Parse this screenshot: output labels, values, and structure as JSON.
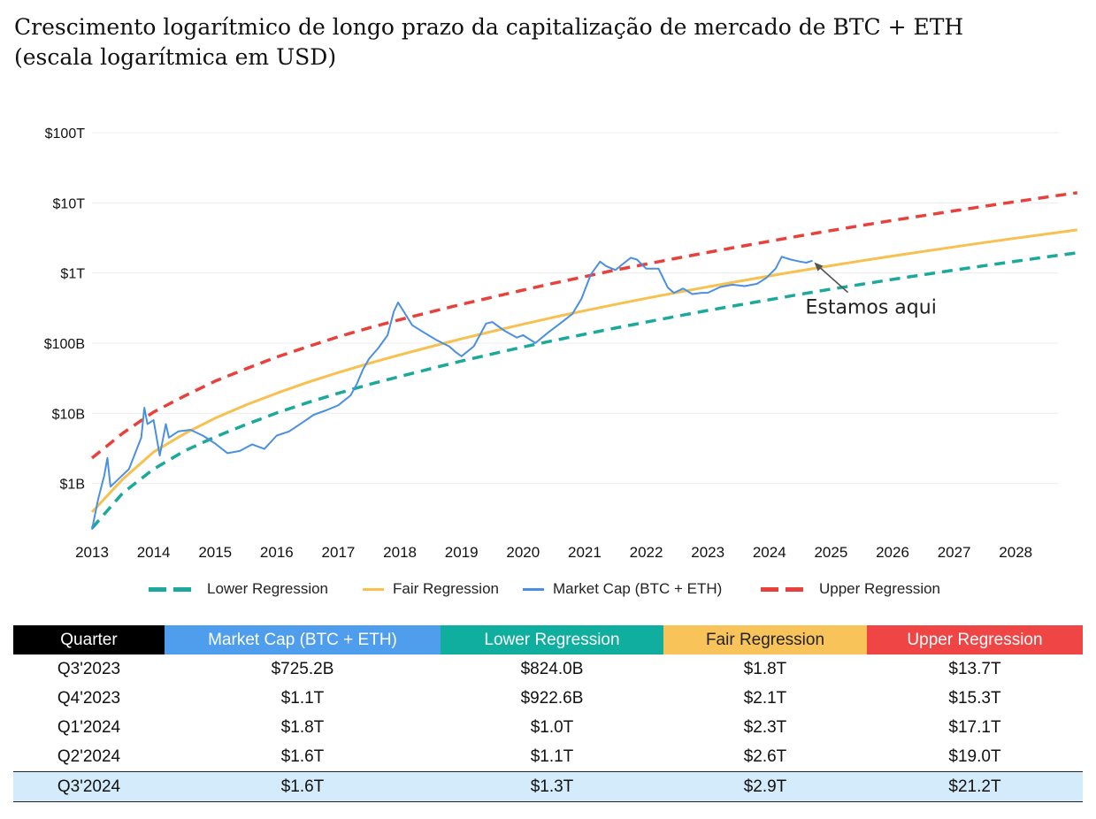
{
  "title_line1": "Crescimento logarítmico de longo prazo da capitalização de mercado de BTC + ETH",
  "title_line2": "(escala logarítmica em USD)",
  "chart_data": {
    "type": "line",
    "title": "Crescimento logarítmico de longo prazo da capitalização de mercado de BTC + ETH (escala logarítmica em USD)",
    "yscale": "log",
    "ylim": [
      0.2,
      100000
    ],
    "xlim": [
      2013,
      2029
    ],
    "y_unit": "billion USD",
    "y_ticks": [
      1,
      10,
      100,
      1000,
      10000,
      100000
    ],
    "y_tick_labels": [
      "$1B",
      "$10B",
      "$100B",
      "$1T",
      "$10T",
      "$100T"
    ],
    "x_ticks": [
      2013,
      2014,
      2015,
      2016,
      2017,
      2018,
      2019,
      2020,
      2021,
      2022,
      2023,
      2024,
      2025,
      2026,
      2027,
      2028
    ],
    "x_tick_labels": [
      "2013",
      "2014",
      "2015",
      "2016",
      "2017",
      "2018",
      "2019",
      "2020",
      "2021",
      "2022",
      "2023",
      "2024",
      "2025",
      "2026",
      "2027",
      "2028"
    ],
    "grid": true,
    "legend_position": "bottom",
    "annotation": {
      "text": "Estamos aqui",
      "x": 2024.7,
      "y": 1500
    },
    "series": [
      {
        "name": "Lower Regression",
        "color": "#1aa99b",
        "style": "dashed",
        "x": [
          2013.0,
          2013.5,
          2014.0,
          2014.5,
          2015.0,
          2015.5,
          2016.0,
          2016.5,
          2017.0,
          2017.5,
          2018.0,
          2018.5,
          2019.0,
          2019.5,
          2020.0,
          2020.5,
          2021.0,
          2021.5,
          2022.0,
          2022.5,
          2023.0,
          2023.5,
          2024.0,
          2024.5,
          2025.0,
          2025.5,
          2026.0,
          2026.5,
          2027.0,
          2027.5,
          2028.0,
          2028.5,
          2029.0
        ],
        "y": [
          0.23,
          0.73,
          1.6,
          2.9,
          4.6,
          6.9,
          10.1,
          14.2,
          19.3,
          25.7,
          33.4,
          43.2,
          55.5,
          70.1,
          88.0,
          109,
          134,
          164,
          199,
          242,
          292,
          349,
          415,
          497,
          589,
          691,
          809,
          943,
          1097,
          1272,
          1470,
          1693,
          1940
        ]
      },
      {
        "name": "Fair Regression",
        "color": "#f7c04f",
        "style": "solid",
        "x": [
          2013.0,
          2013.5,
          2014.0,
          2014.5,
          2015.0,
          2015.5,
          2016.0,
          2016.5,
          2017.0,
          2017.5,
          2018.0,
          2018.5,
          2019.0,
          2019.5,
          2020.0,
          2020.5,
          2021.0,
          2021.5,
          2022.0,
          2022.5,
          2023.0,
          2023.5,
          2024.0,
          2024.5,
          2025.0,
          2025.5,
          2026.0,
          2026.5,
          2027.0,
          2027.5,
          2028.0,
          2028.5,
          2029.0
        ],
        "y": [
          0.39,
          1.15,
          2.8,
          5.1,
          8.5,
          13.1,
          19.3,
          27.6,
          38.1,
          51.5,
          68.0,
          89.0,
          115,
          147,
          186,
          234,
          290,
          356,
          435,
          527,
          634,
          759,
          906,
          1075,
          1270,
          1492,
          1743,
          2028,
          2352,
          2718,
          3130,
          3594,
          4116
        ]
      },
      {
        "name": "Market Cap (BTC + ETH)",
        "color": "#4a90e2",
        "style": "solid",
        "x": [
          2013.0,
          2013.1,
          2013.2,
          2013.25,
          2013.3,
          2013.45,
          2013.6,
          2013.8,
          2013.85,
          2013.9,
          2014.0,
          2014.1,
          2014.2,
          2014.25,
          2014.4,
          2014.6,
          2014.8,
          2015.0,
          2015.2,
          2015.4,
          2015.6,
          2015.8,
          2016.0,
          2016.2,
          2016.4,
          2016.6,
          2016.8,
          2017.0,
          2017.2,
          2017.3,
          2017.4,
          2017.5,
          2017.65,
          2017.8,
          2017.9,
          2017.97,
          2018.1,
          2018.2,
          2018.4,
          2018.6,
          2018.8,
          2018.9,
          2019.0,
          2019.2,
          2019.4,
          2019.5,
          2019.7,
          2019.9,
          2020.0,
          2020.2,
          2020.4,
          2020.6,
          2020.8,
          2020.95,
          2021.1,
          2021.25,
          2021.35,
          2021.5,
          2021.6,
          2021.75,
          2021.85,
          2022.0,
          2022.2,
          2022.35,
          2022.45,
          2022.6,
          2022.75,
          2022.9,
          2023.0,
          2023.2,
          2023.4,
          2023.6,
          2023.8,
          2023.95,
          2024.1,
          2024.2,
          2024.35,
          2024.5,
          2024.6,
          2024.7
        ],
        "y": [
          0.22,
          0.6,
          1.3,
          2.3,
          0.9,
          1.2,
          1.6,
          4.5,
          12,
          7,
          8,
          2.5,
          7,
          4.5,
          5.5,
          5.8,
          4.8,
          3.7,
          2.7,
          2.9,
          3.6,
          3.1,
          4.8,
          5.5,
          7.2,
          9.5,
          11,
          13,
          18,
          26,
          42,
          60,
          85,
          130,
          280,
          380,
          250,
          180,
          140,
          110,
          90,
          75,
          65,
          90,
          190,
          200,
          150,
          120,
          130,
          100,
          140,
          190,
          260,
          430,
          950,
          1450,
          1250,
          1100,
          1300,
          1650,
          1550,
          1150,
          1150,
          620,
          520,
          600,
          500,
          520,
          520,
          630,
          680,
          650,
          700,
          850,
          1150,
          1700,
          1550,
          1450,
          1400,
          1500
        ]
      },
      {
        "name": "Upper Regression",
        "color": "#e8413c",
        "style": "dashed",
        "x": [
          2013.0,
          2013.5,
          2014.0,
          2014.5,
          2015.0,
          2015.5,
          2016.0,
          2016.5,
          2017.0,
          2017.5,
          2018.0,
          2018.5,
          2019.0,
          2019.5,
          2020.0,
          2020.5,
          2021.0,
          2021.5,
          2022.0,
          2022.5,
          2023.0,
          2023.5,
          2024.0,
          2024.5,
          2025.0,
          2025.5,
          2026.0,
          2026.5,
          2027.0,
          2027.5,
          2028.0,
          2028.5,
          2029.0
        ],
        "y": [
          2.3,
          5.2,
          10.4,
          17.6,
          28.7,
          43.0,
          63.3,
          88.9,
          123,
          165,
          216,
          278,
          357,
          452,
          570,
          714,
          885,
          1100,
          1338,
          1625,
          1965,
          2365,
          2833,
          3383,
          4022,
          4757,
          5606,
          6572,
          7680,
          8946,
          10400,
          12044,
          13909
        ]
      }
    ]
  },
  "table": {
    "headers": [
      {
        "label": "Quarter",
        "bg": "#000000",
        "fg": "#ffffff"
      },
      {
        "label": "Market Cap (BTC + ETH)",
        "bg": "#4f9ded",
        "fg": "#ffffff"
      },
      {
        "label": "Lower Regression",
        "bg": "#0fae9f",
        "fg": "#ffffff"
      },
      {
        "label": "Fair Regression",
        "bg": "#f8c45a",
        "fg": "#222222"
      },
      {
        "label": "Upper Regression",
        "bg": "#f04545",
        "fg": "#ffffff"
      }
    ],
    "rows": [
      [
        "Q3'2023",
        "$725.2B",
        "$824.0B",
        "$1.8T",
        "$13.7T"
      ],
      [
        "Q4'2023",
        "$1.1T",
        "$922.6B",
        "$2.1T",
        "$15.3T"
      ],
      [
        "Q1'2024",
        "$1.8T",
        "$1.0T",
        "$2.3T",
        "$17.1T"
      ],
      [
        "Q2'2024",
        "$1.6T",
        "$1.1T",
        "$2.6T",
        "$19.0T"
      ],
      [
        "Q3'2024",
        "$1.6T",
        "$1.3T",
        "$2.9T",
        "$21.2T"
      ]
    ],
    "highlighted_row": 4
  }
}
